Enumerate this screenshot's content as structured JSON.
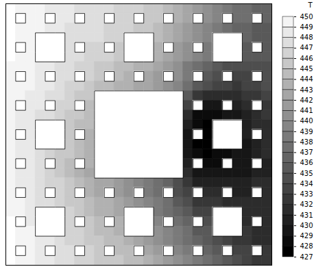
{
  "chart_data": {
    "type": "heatmap",
    "tick_labels": false,
    "cells": [
      [
        450,
        449,
        449,
        449,
        448,
        448,
        448,
        447,
        447,
        447,
        447,
        446,
        446,
        446,
        445,
        445,
        444,
        443,
        442,
        441,
        440,
        439,
        438,
        437,
        437,
        436,
        436
      ],
      [
        450,
        null,
        449,
        449,
        null,
        448,
        448,
        null,
        447,
        447,
        null,
        446,
        446,
        null,
        445,
        445,
        null,
        443,
        442,
        null,
        440,
        439,
        null,
        437,
        437,
        null,
        436
      ],
      [
        450,
        449,
        449,
        449,
        448,
        448,
        447,
        447,
        447,
        447,
        446,
        446,
        446,
        445,
        445,
        444,
        443,
        442,
        441,
        440,
        439,
        438,
        437,
        436,
        436,
        435,
        435
      ],
      [
        450,
        449,
        449,
        null,
        null,
        null,
        447,
        447,
        447,
        447,
        446,
        446,
        null,
        null,
        null,
        444,
        443,
        442,
        441,
        440,
        439,
        null,
        null,
        null,
        436,
        435,
        435
      ],
      [
        450,
        null,
        449,
        null,
        null,
        null,
        447,
        null,
        446,
        446,
        null,
        445,
        null,
        null,
        null,
        443,
        null,
        441,
        440,
        null,
        438,
        null,
        null,
        null,
        435,
        null,
        435
      ],
      [
        450,
        449,
        449,
        null,
        null,
        null,
        447,
        447,
        446,
        446,
        446,
        445,
        null,
        null,
        null,
        443,
        442,
        441,
        440,
        439,
        438,
        null,
        null,
        null,
        435,
        435,
        435
      ],
      [
        449,
        449,
        449,
        448,
        448,
        447,
        447,
        446,
        446,
        445,
        445,
        444,
        444,
        443,
        443,
        442,
        441,
        440,
        438,
        437,
        436,
        435,
        434,
        434,
        434,
        434,
        434
      ],
      [
        449,
        null,
        449,
        448,
        null,
        447,
        447,
        null,
        446,
        445,
        null,
        444,
        443,
        null,
        442,
        441,
        null,
        440,
        438,
        null,
        435,
        434,
        null,
        433,
        433,
        null,
        434
      ],
      [
        449,
        449,
        449,
        448,
        448,
        447,
        446,
        446,
        445,
        444,
        444,
        443,
        443,
        442,
        442,
        441,
        440,
        439,
        437,
        435,
        434,
        433,
        433,
        432,
        433,
        433,
        434
      ],
      [
        449,
        449,
        448,
        448,
        447,
        447,
        446,
        445,
        445,
        null,
        null,
        null,
        null,
        null,
        null,
        null,
        null,
        null,
        435,
        432,
        431,
        431,
        431,
        431,
        432,
        432,
        433
      ],
      [
        449,
        null,
        448,
        448,
        null,
        446,
        446,
        null,
        444,
        null,
        null,
        null,
        null,
        null,
        null,
        null,
        null,
        null,
        433,
        null,
        429,
        429,
        null,
        430,
        431,
        null,
        432
      ],
      [
        449,
        448,
        448,
        447,
        447,
        446,
        445,
        445,
        444,
        null,
        null,
        null,
        null,
        null,
        null,
        null,
        null,
        null,
        431,
        428,
        428,
        428,
        429,
        429,
        430,
        431,
        432
      ],
      [
        449,
        448,
        448,
        null,
        null,
        null,
        445,
        444,
        444,
        null,
        null,
        null,
        null,
        null,
        null,
        null,
        null,
        null,
        430,
        428,
        427,
        null,
        null,
        null,
        430,
        431,
        431
      ],
      [
        449,
        null,
        448,
        null,
        null,
        null,
        445,
        null,
        443,
        null,
        null,
        null,
        null,
        null,
        null,
        null,
        null,
        null,
        429,
        null,
        427,
        null,
        null,
        null,
        430,
        null,
        431
      ],
      [
        449,
        448,
        448,
        null,
        null,
        null,
        445,
        444,
        443,
        null,
        null,
        null,
        null,
        null,
        null,
        null,
        null,
        null,
        429,
        427,
        427,
        null,
        null,
        null,
        429,
        430,
        431
      ],
      [
        449,
        448,
        448,
        447,
        446,
        445,
        445,
        444,
        443,
        null,
        null,
        null,
        null,
        null,
        null,
        null,
        null,
        null,
        429,
        428,
        427,
        428,
        428,
        429,
        429,
        430,
        431
      ],
      [
        449,
        null,
        448,
        447,
        null,
        445,
        444,
        null,
        443,
        null,
        null,
        null,
        null,
        null,
        null,
        null,
        null,
        null,
        430,
        null,
        428,
        428,
        null,
        429,
        429,
        null,
        430
      ],
      [
        449,
        448,
        448,
        447,
        446,
        445,
        444,
        443,
        442,
        null,
        null,
        null,
        null,
        null,
        null,
        null,
        null,
        null,
        431,
        429,
        429,
        429,
        429,
        429,
        429,
        430,
        430
      ],
      [
        449,
        448,
        448,
        447,
        446,
        446,
        445,
        444,
        443,
        442,
        442,
        441,
        440,
        439,
        438,
        437,
        436,
        434,
        432,
        430,
        430,
        430,
        430,
        430,
        430,
        431,
        431
      ],
      [
        449,
        null,
        448,
        447,
        null,
        446,
        445,
        null,
        443,
        442,
        null,
        441,
        440,
        null,
        438,
        437,
        null,
        434,
        433,
        null,
        431,
        431,
        null,
        430,
        430,
        null,
        431
      ],
      [
        449,
        449,
        448,
        447,
        447,
        446,
        445,
        445,
        444,
        443,
        443,
        442,
        441,
        440,
        439,
        438,
        437,
        435,
        434,
        432,
        432,
        432,
        431,
        431,
        431,
        431,
        431
      ],
      [
        449,
        449,
        448,
        null,
        null,
        null,
        446,
        445,
        444,
        443,
        443,
        442,
        null,
        null,
        null,
        438,
        437,
        436,
        435,
        433,
        433,
        null,
        null,
        null,
        431,
        431,
        431
      ],
      [
        450,
        null,
        448,
        null,
        null,
        null,
        446,
        null,
        445,
        444,
        null,
        443,
        null,
        null,
        null,
        439,
        null,
        437,
        436,
        null,
        434,
        null,
        null,
        null,
        431,
        null,
        431
      ],
      [
        450,
        449,
        449,
        null,
        null,
        null,
        446,
        446,
        445,
        444,
        444,
        443,
        null,
        null,
        null,
        440,
        439,
        438,
        437,
        435,
        435,
        null,
        null,
        null,
        432,
        431,
        431
      ],
      [
        450,
        449,
        449,
        448,
        448,
        447,
        446,
        446,
        445,
        445,
        444,
        444,
        443,
        442,
        441,
        440,
        439,
        438,
        437,
        436,
        435,
        434,
        433,
        432,
        432,
        431,
        431
      ],
      [
        450,
        null,
        449,
        448,
        null,
        447,
        447,
        null,
        446,
        445,
        null,
        444,
        444,
        null,
        442,
        441,
        null,
        439,
        438,
        null,
        436,
        435,
        null,
        433,
        433,
        null,
        432
      ],
      [
        450,
        449,
        449,
        448,
        448,
        447,
        447,
        446,
        446,
        445,
        445,
        445,
        444,
        444,
        443,
        442,
        441,
        440,
        439,
        438,
        437,
        436,
        435,
        434,
        433,
        432,
        432
      ]
    ],
    "colorbar": {
      "label": "T",
      "range": [
        427,
        450
      ],
      "ticks": [
        427,
        428,
        429,
        430,
        431,
        432,
        433,
        434,
        435,
        436,
        437,
        438,
        439,
        440,
        441,
        442,
        443,
        444,
        445,
        446,
        447,
        448,
        449,
        450
      ]
    }
  }
}
